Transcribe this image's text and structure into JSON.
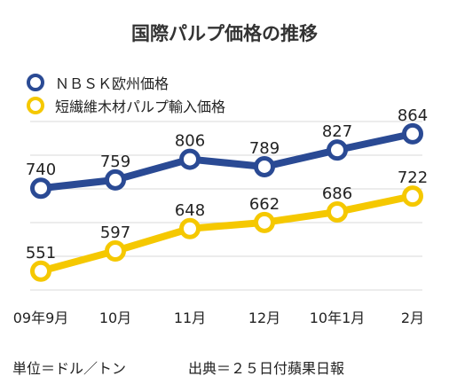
{
  "title": "国際パルプ価格の推移",
  "unit_note": "単位＝ドル／トン",
  "source_note": "出典＝２５日付蘋果日報",
  "chart_data": {
    "type": "line",
    "title": "国際パルプ価格の推移",
    "categories": [
      "09年9月",
      "10月",
      "11月",
      "12月",
      "10年1月",
      "2月"
    ],
    "series": [
      {
        "name": "ＮＢＳＫ欧州価格",
        "values": [
          740,
          759,
          806,
          789,
          827,
          864
        ],
        "color": "#2a4a94"
      },
      {
        "name": "短繊維木材パルプ輸入価格",
        "values": [
          551,
          597,
          648,
          662,
          686,
          722
        ],
        "color": "#f5c800"
      }
    ],
    "ylim": [
      500,
      890
    ],
    "grid": true,
    "legend_position": "top-left"
  }
}
